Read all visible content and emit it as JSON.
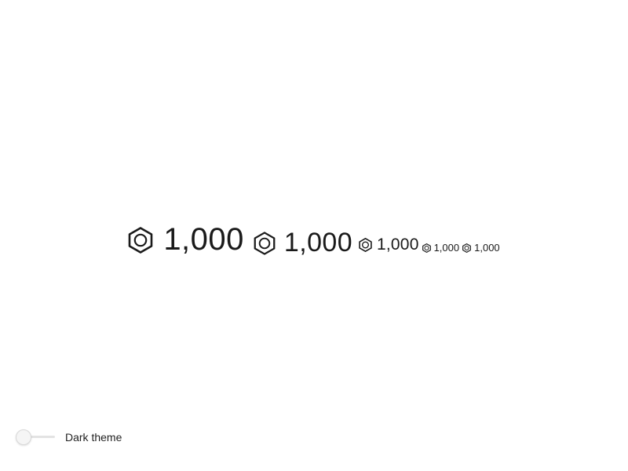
{
  "amounts": [
    {
      "size": "xl",
      "icon": "hexagon-currency-icon",
      "value": "1,000"
    },
    {
      "size": "lg",
      "icon": "hexagon-currency-icon",
      "value": "1,000"
    },
    {
      "size": "md",
      "icon": "hexagon-currency-icon",
      "value": "1,000"
    },
    {
      "size": "sm",
      "icon": "hexagon-currency-icon",
      "value": "1,000"
    },
    {
      "size": "xs",
      "icon": "hexagon-currency-icon",
      "value": "1,000"
    }
  ],
  "theme_toggle": {
    "label": "Dark theme",
    "checked": false
  },
  "colors": {
    "text": "#1a1a1a",
    "track": "#e3e3e3",
    "knob": "#f5f5f5"
  }
}
